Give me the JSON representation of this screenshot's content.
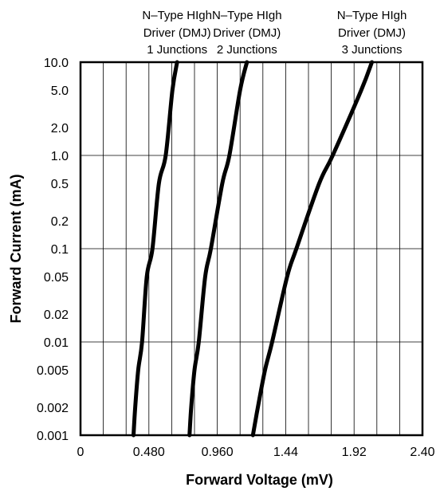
{
  "chart_data": {
    "type": "line",
    "title": "",
    "xlabel": "Forward Voltage (mV)",
    "ylabel": "Forward Current (mA)",
    "x_ticks": [
      "0",
      "0.480",
      "0.960",
      "1.44",
      "1.92",
      "2.40"
    ],
    "x_tick_values": [
      0,
      0.48,
      0.96,
      1.44,
      1.92,
      2.4
    ],
    "xlim": [
      0,
      2.4
    ],
    "y_scale": "log",
    "y_ticks": [
      "10.0",
      "5.0",
      "2.0",
      "1.0",
      "0.5",
      "0.2",
      "0.1",
      "0.05",
      "0.02",
      "0.01",
      "0.005",
      "0.002",
      "0.001"
    ],
    "y_tick_values": [
      10,
      5,
      2,
      1,
      0.5,
      0.2,
      0.1,
      0.05,
      0.02,
      0.01,
      0.005,
      0.002,
      0.001
    ],
    "ylim": [
      0.001,
      10
    ],
    "grid": true,
    "series": [
      {
        "name": "N–Type HIgh Driver (DMJ) 1 Junctions",
        "label_lines": [
          "N–Type HIgh",
          "Driver (DMJ)",
          "1 Junctions"
        ],
        "x": [
          0.372,
          0.384,
          0.405,
          0.432,
          0.465,
          0.505,
          0.55,
          0.598,
          0.645,
          0.678
        ],
        "y": [
          0.001,
          0.002,
          0.005,
          0.01,
          0.05,
          0.1,
          0.5,
          1.0,
          5.0,
          10.0
        ]
      },
      {
        "name": "N–Type HIgh Driver (DMJ) 2 Junctions",
        "label_lines": [
          "N–Type HIgh",
          "Driver (DMJ)",
          "2 Junctions"
        ],
        "x": [
          0.765,
          0.777,
          0.8,
          0.83,
          0.875,
          0.915,
          0.995,
          1.045,
          1.12,
          1.168
        ],
        "y": [
          0.001,
          0.002,
          0.005,
          0.01,
          0.05,
          0.1,
          0.5,
          1.0,
          5.0,
          10.0
        ]
      },
      {
        "name": "N–Type HIgh Driver (DMJ) 3 Junctions",
        "label_lines": [
          "N–Type HIgh",
          "Driver (DMJ)",
          "3 Junctions"
        ],
        "x": [
          1.21,
          1.245,
          1.295,
          1.345,
          1.45,
          1.515,
          1.675,
          1.77,
          1.97,
          2.045
        ],
        "y": [
          0.001,
          0.002,
          0.005,
          0.01,
          0.05,
          0.1,
          0.5,
          1.0,
          5.0,
          10.0
        ]
      }
    ]
  }
}
